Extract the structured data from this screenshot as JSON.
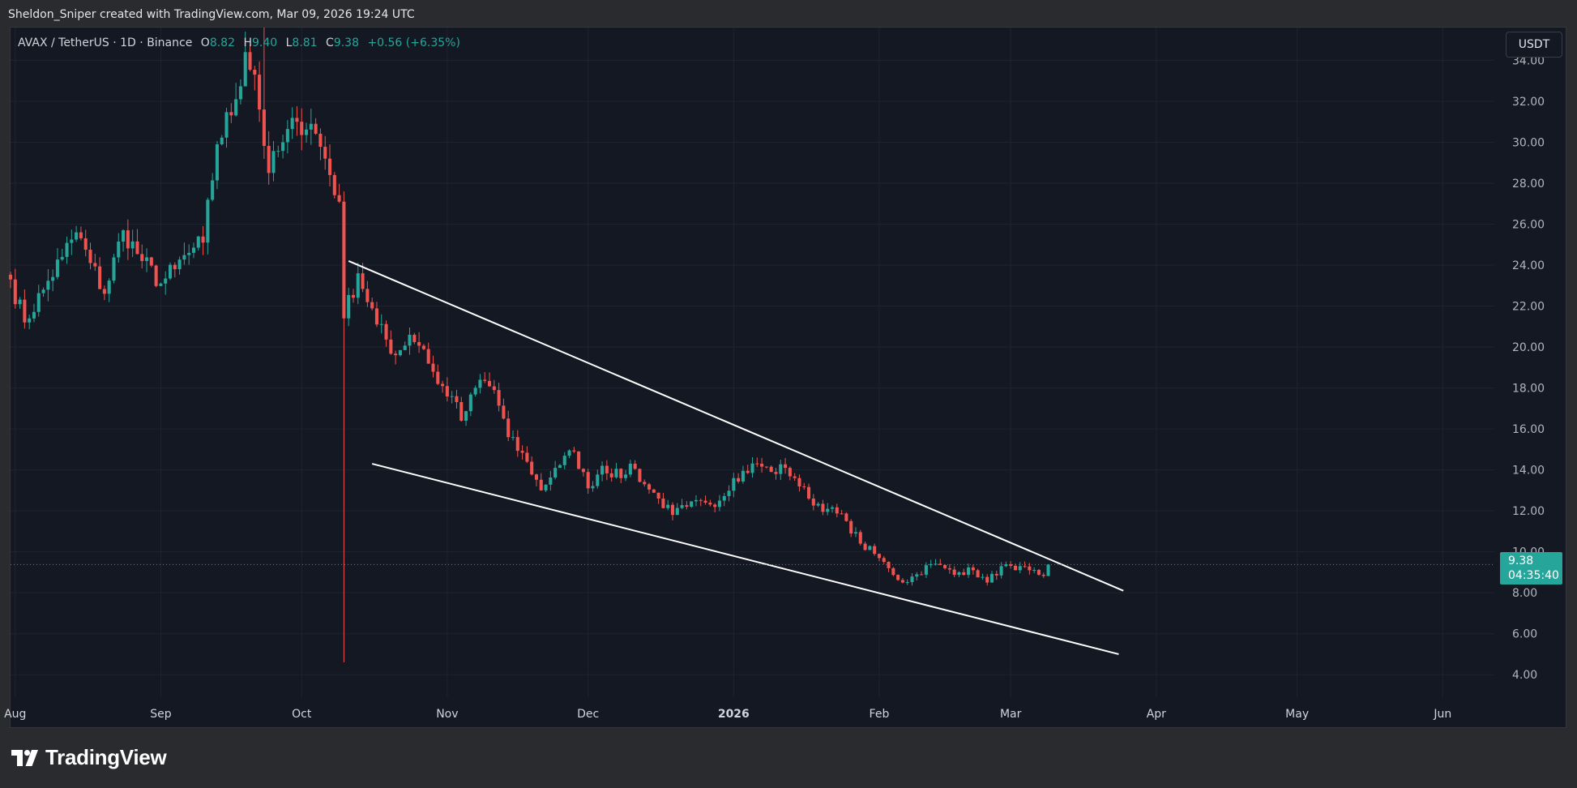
{
  "header": {
    "attribution": "Sheldon_Sniper created with TradingView.com, Mar 09, 2026 19:24 UTC"
  },
  "legend": {
    "symbol": "AVAX / TetherUS · 1D · Binance",
    "open_label": "O",
    "open": "8.82",
    "high_label": "H",
    "high": "9.40",
    "low_label": "L",
    "low": "8.81",
    "close_label": "C",
    "close": "9.38",
    "change": "+0.56 (+6.35%)"
  },
  "currency_button": "USDT",
  "price_tag": {
    "price": "9.38",
    "countdown": "04:35:40"
  },
  "footer": {
    "logo_text": "TradingView"
  },
  "colors": {
    "up": "#26a69a",
    "down": "#ef5350",
    "background": "#141822",
    "trendline": "#ffffff"
  },
  "chart_data": {
    "type": "candlestick",
    "symbol": "AVAX / TetherUS",
    "interval": "1D",
    "exchange": "Binance",
    "y_ticks": [
      "34.00",
      "32.00",
      "30.00",
      "28.00",
      "26.00",
      "24.00",
      "22.00",
      "20.00",
      "18.00",
      "16.00",
      "14.00",
      "12.00",
      "10.00",
      "8.00",
      "6.00",
      "4.00"
    ],
    "ylim": [
      2.9,
      35.6
    ],
    "x_ticks": [
      {
        "label": "Aug",
        "date": "2025-08-01",
        "bold": false
      },
      {
        "label": "Sep",
        "date": "2025-09-01",
        "bold": false
      },
      {
        "label": "Oct",
        "date": "2025-10-01",
        "bold": false
      },
      {
        "label": "Nov",
        "date": "2025-11-01",
        "bold": false
      },
      {
        "label": "Dec",
        "date": "2025-12-01",
        "bold": false
      },
      {
        "label": "2026",
        "date": "2026-01-01",
        "bold": true
      },
      {
        "label": "Feb",
        "date": "2026-02-01",
        "bold": false
      },
      {
        "label": "Mar",
        "date": "2026-03-01",
        "bold": false
      },
      {
        "label": "Apr",
        "date": "2026-04-01",
        "bold": false
      },
      {
        "label": "May",
        "date": "2026-05-01",
        "bold": false
      },
      {
        "label": "Jun",
        "date": "2026-06-01",
        "bold": false
      }
    ],
    "xlim": [
      "2025-07-31",
      "2026-06-12"
    ],
    "last_price": 9.38,
    "grid": true,
    "trendlines": [
      {
        "name": "upper",
        "from": {
          "date": "2025-10-11",
          "price": 24.2
        },
        "to": {
          "date": "2026-03-25",
          "price": 8.1
        }
      },
      {
        "name": "lower",
        "from": {
          "date": "2025-10-16",
          "price": 14.3
        },
        "to": {
          "date": "2026-03-24",
          "price": 5.0
        }
      }
    ],
    "close_anchors": [
      [
        "2025-07-31",
        23.3
      ],
      [
        "2025-08-03",
        21.2
      ],
      [
        "2025-08-07",
        22.8
      ],
      [
        "2025-08-11",
        24.4
      ],
      [
        "2025-08-14",
        25.6
      ],
      [
        "2025-08-17",
        24.1
      ],
      [
        "2025-08-20",
        22.6
      ],
      [
        "2025-08-24",
        25.7
      ],
      [
        "2025-08-28",
        24.2
      ],
      [
        "2025-09-01",
        23.1
      ],
      [
        "2025-09-04",
        23.8
      ],
      [
        "2025-09-07",
        24.6
      ],
      [
        "2025-09-10",
        25.1
      ],
      [
        "2025-09-13",
        29.9
      ],
      [
        "2025-09-17",
        32.1
      ],
      [
        "2025-09-19",
        34.4
      ],
      [
        "2025-09-21",
        33.3
      ],
      [
        "2025-09-24",
        28.5
      ],
      [
        "2025-09-27",
        30.0
      ],
      [
        "2025-09-30",
        31.0
      ],
      [
        "2025-10-03",
        30.9
      ],
      [
        "2025-10-06",
        29.2
      ],
      [
        "2025-10-09",
        27.1
      ],
      [
        "2025-10-10",
        21.4
      ],
      [
        "2025-10-13",
        23.6
      ],
      [
        "2025-10-17",
        21.1
      ],
      [
        "2025-10-21",
        19.6
      ],
      [
        "2025-10-24",
        20.6
      ],
      [
        "2025-10-27",
        19.9
      ],
      [
        "2025-10-30",
        18.2
      ],
      [
        "2025-11-02",
        17.6
      ],
      [
        "2025-11-04",
        16.4
      ],
      [
        "2025-11-08",
        18.4
      ],
      [
        "2025-11-11",
        17.9
      ],
      [
        "2025-11-14",
        15.6
      ],
      [
        "2025-11-18",
        14.4
      ],
      [
        "2025-11-21",
        13.0
      ],
      [
        "2025-11-24",
        14.1
      ],
      [
        "2025-11-28",
        14.9
      ],
      [
        "2025-12-01",
        13.1
      ],
      [
        "2025-12-04",
        14.2
      ],
      [
        "2025-12-08",
        13.6
      ],
      [
        "2025-12-10",
        14.3
      ],
      [
        "2025-12-13",
        13.3
      ],
      [
        "2025-12-16",
        12.6
      ],
      [
        "2025-12-19",
        11.8
      ],
      [
        "2025-12-22",
        12.2
      ],
      [
        "2025-12-26",
        12.4
      ],
      [
        "2025-12-29",
        12.5
      ],
      [
        "2026-01-01",
        13.6
      ],
      [
        "2026-01-06",
        14.3
      ],
      [
        "2026-01-09",
        13.9
      ],
      [
        "2026-01-12",
        14.1
      ],
      [
        "2026-01-14",
        13.6
      ],
      [
        "2026-01-17",
        12.6
      ],
      [
        "2026-01-21",
        12.1
      ],
      [
        "2026-01-25",
        11.5
      ],
      [
        "2026-01-28",
        10.4
      ],
      [
        "2026-01-31",
        9.9
      ],
      [
        "2026-02-03",
        9.2
      ],
      [
        "2026-02-06",
        8.5
      ],
      [
        "2026-02-09",
        8.9
      ],
      [
        "2026-02-12",
        9.4
      ],
      [
        "2026-02-15",
        9.2
      ],
      [
        "2026-02-18",
        9.0
      ],
      [
        "2026-02-21",
        9.1
      ],
      [
        "2026-02-24",
        8.5
      ],
      [
        "2026-02-27",
        9.3
      ],
      [
        "2026-03-02",
        9.1
      ],
      [
        "2026-03-05",
        9.1
      ],
      [
        "2026-03-08",
        8.82
      ],
      [
        "2026-03-09",
        9.38
      ]
    ]
  }
}
